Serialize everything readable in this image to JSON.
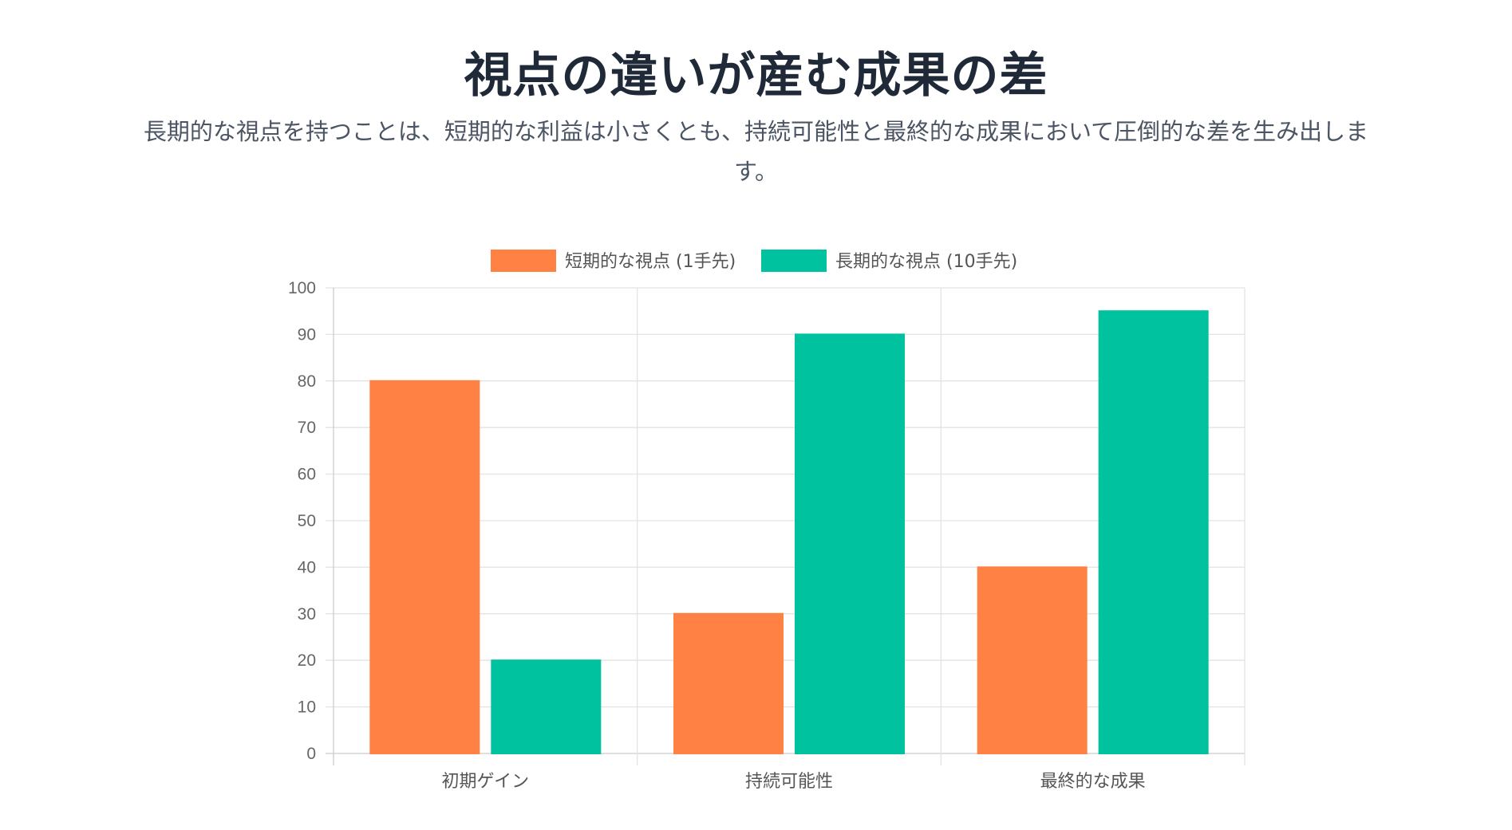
{
  "header": {
    "title": "視点の違いが産む成果の差",
    "subtitle": "長期的な視点を持つことは、短期的な利益は小さくとも、持続可能性と最終的な成果において圧倒的な差を生み出します。"
  },
  "colors": {
    "short_term": "#ff8144",
    "long_term": "#00c29e",
    "grid": "#e3e3e3",
    "axis": "#cccccc"
  },
  "chart_data": {
    "type": "bar",
    "categories": [
      "初期ゲイン",
      "持続可能性",
      "最終的な成果"
    ],
    "series": [
      {
        "name": "短期的な視点 (1手先)",
        "values": [
          80,
          30,
          40
        ],
        "color": "#ff8144"
      },
      {
        "name": "長期的な視点 (10手先)",
        "values": [
          20,
          90,
          95
        ],
        "color": "#00c29e"
      }
    ],
    "ylim": [
      0,
      100
    ],
    "yticks": [
      0,
      10,
      20,
      30,
      40,
      50,
      60,
      70,
      80,
      90,
      100
    ],
    "grid": true,
    "legend": "top-center"
  }
}
